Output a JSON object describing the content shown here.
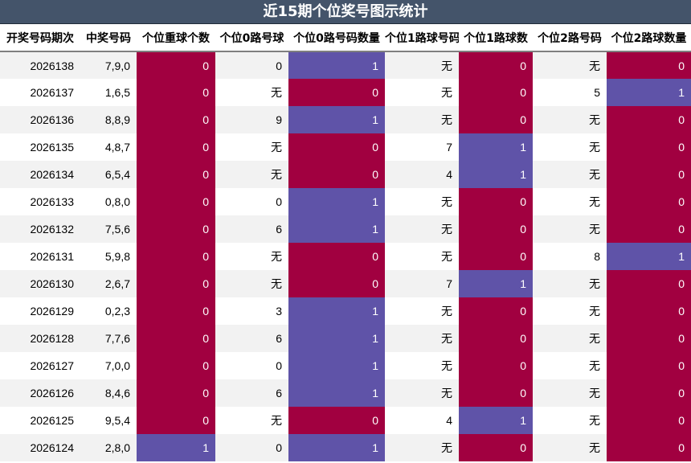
{
  "title": "近15期个位奖号图示统计",
  "colors": {
    "zero": "#a10040",
    "one": "#5f53a8",
    "header_bg": "#44546a"
  },
  "chart_data": {
    "type": "table",
    "columns": [
      "开奖号码期次",
      "中奖号码",
      "个位重球个数",
      "个位0路号球",
      "个位0路号码数量",
      "个位1路球号码",
      "个位1路球数",
      "个位2路号码",
      "个位2路球数量"
    ],
    "rows": [
      [
        "2026138",
        "7,9,0",
        "0",
        "0",
        "1",
        "无",
        "0",
        "无",
        "0"
      ],
      [
        "2026137",
        "1,6,5",
        "0",
        "无",
        "0",
        "无",
        "0",
        "5",
        "1"
      ],
      [
        "2026136",
        "8,8,9",
        "0",
        "9",
        "1",
        "无",
        "0",
        "无",
        "0"
      ],
      [
        "2026135",
        "4,8,7",
        "0",
        "无",
        "0",
        "7",
        "1",
        "无",
        "0"
      ],
      [
        "2026134",
        "6,5,4",
        "0",
        "无",
        "0",
        "4",
        "1",
        "无",
        "0"
      ],
      [
        "2026133",
        "0,8,0",
        "0",
        "0",
        "1",
        "无",
        "0",
        "无",
        "0"
      ],
      [
        "2026132",
        "7,5,6",
        "0",
        "6",
        "1",
        "无",
        "0",
        "无",
        "0"
      ],
      [
        "2026131",
        "5,9,8",
        "0",
        "无",
        "0",
        "无",
        "0",
        "8",
        "1"
      ],
      [
        "2026130",
        "2,6,7",
        "0",
        "无",
        "0",
        "7",
        "1",
        "无",
        "0"
      ],
      [
        "2026129",
        "0,2,3",
        "0",
        "3",
        "1",
        "无",
        "0",
        "无",
        "0"
      ],
      [
        "2026128",
        "7,7,6",
        "0",
        "6",
        "1",
        "无",
        "0",
        "无",
        "0"
      ],
      [
        "2026127",
        "7,0,0",
        "0",
        "0",
        "1",
        "无",
        "0",
        "无",
        "0"
      ],
      [
        "2026126",
        "8,4,6",
        "0",
        "6",
        "1",
        "无",
        "0",
        "无",
        "0"
      ],
      [
        "2026125",
        "9,5,4",
        "0",
        "无",
        "0",
        "4",
        "1",
        "无",
        "0"
      ],
      [
        "2026124",
        "2,8,0",
        "1",
        "0",
        "1",
        "无",
        "0",
        "无",
        "0"
      ]
    ]
  }
}
